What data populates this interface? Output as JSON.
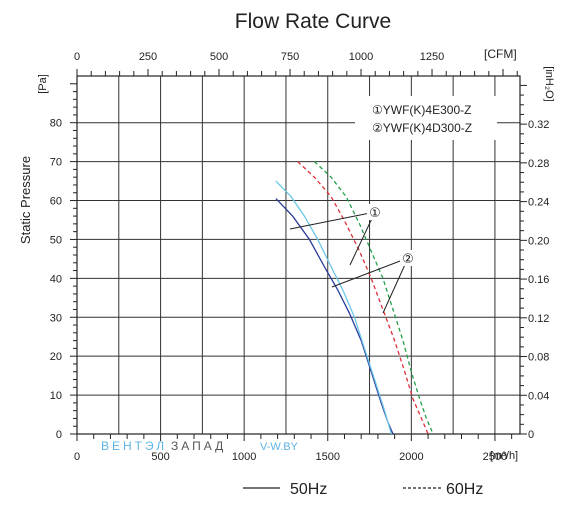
{
  "chart_data": {
    "type": "line",
    "title": "Flow Rate Curve",
    "ylabel": "Static Pressure",
    "y_unit_left": "[Pa]",
    "y_unit_right": "[inH₂O]",
    "x_unit_bottom": "[m³/h]",
    "x_unit_top": "[CFM]",
    "xlim": [
      0,
      2650
    ],
    "ylim": [
      0,
      92
    ],
    "grid": true,
    "legend_position": "bottom-center",
    "x_ticks": [
      0,
      500,
      1000,
      1500,
      2000,
      2500
    ],
    "y_ticks": [
      0,
      10,
      20,
      30,
      40,
      50,
      60,
      70,
      80
    ],
    "top_ticks": [
      0,
      250,
      500,
      750,
      1000,
      1250
    ],
    "right_ticks": [
      "0",
      "0.04",
      "0.08",
      "0.12",
      "0.16",
      "0.20",
      "0.24",
      "0.28",
      "0.32"
    ],
    "models": [
      "①YWF(K)4E300-Z",
      "②YWF(K)4D300-Z"
    ],
    "callouts": [
      "①",
      "②"
    ],
    "legend": [
      {
        "label": "50Hz",
        "style": "solid"
      },
      {
        "label": "60Hz",
        "style": "dashed"
      }
    ],
    "watermark": {
      "part1": "ВЕНТЭЛ",
      "part2": "ЗАПАД",
      "part3": "V-W.BY"
    },
    "series": [
      {
        "model": "①",
        "frequency": "50Hz",
        "color": "#2a3a9a",
        "dash": false,
        "x": [
          1190,
          1290,
          1390,
          1480,
          1560,
          1630,
          1700,
          1760,
          1820,
          1860,
          1890
        ],
        "y": [
          60.5,
          56,
          50,
          43,
          37,
          31,
          24,
          16,
          8,
          3,
          0
        ]
      },
      {
        "model": "②",
        "frequency": "50Hz",
        "color": "#6cc6e8",
        "dash": false,
        "x": [
          1190,
          1280,
          1360,
          1440,
          1520,
          1590,
          1660,
          1720,
          1780,
          1840,
          1880
        ],
        "y": [
          65,
          61,
          56,
          50,
          43,
          37,
          30,
          22,
          14,
          6,
          0
        ]
      },
      {
        "model": "①",
        "frequency": "60Hz",
        "color": "#e0303a",
        "dash": true,
        "x": [
          1320,
          1420,
          1520,
          1610,
          1690,
          1760,
          1830,
          1900,
          1960,
          2010,
          2060,
          2100
        ],
        "y": [
          70,
          66,
          61,
          54,
          47,
          40,
          32,
          24,
          16,
          9,
          4,
          0
        ]
      },
      {
        "model": "②",
        "frequency": "60Hz",
        "color": "#23a04a",
        "dash": true,
        "x": [
          1420,
          1520,
          1610,
          1690,
          1760,
          1830,
          1890,
          1950,
          2000,
          2050,
          2090,
          2130
        ],
        "y": [
          70,
          66,
          61,
          54,
          47,
          40,
          32,
          24,
          16,
          9,
          4,
          0
        ]
      }
    ]
  }
}
